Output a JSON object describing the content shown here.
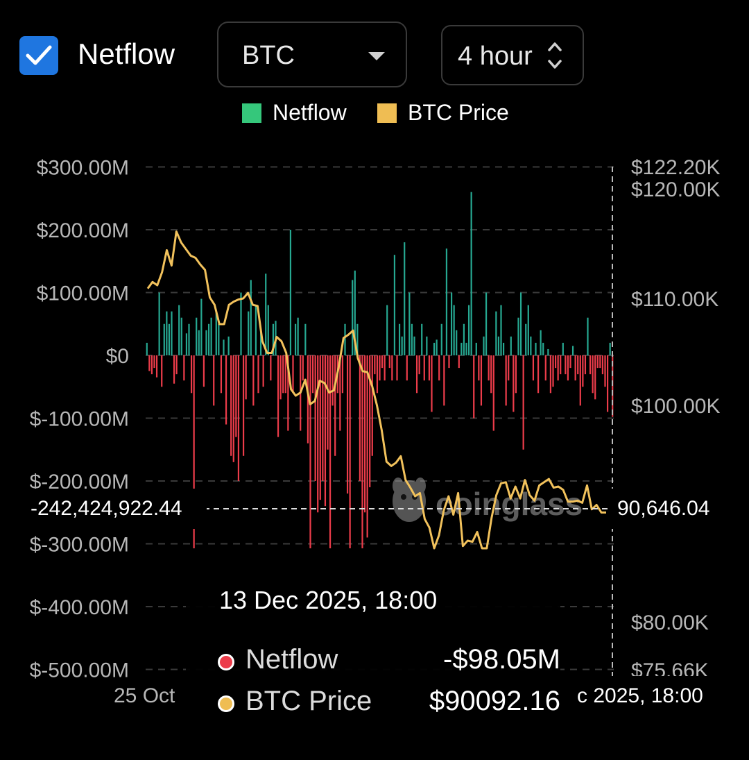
{
  "controls": {
    "checkbox_label": "Netflow",
    "coin": "BTC",
    "interval": "4 hour"
  },
  "colors": {
    "netflow_positive": "#26a891",
    "netflow_negative": "#ec3c4a",
    "price_line": "#f2c25c",
    "legend_netflow": "#35c77b",
    "legend_price": "#efbd53"
  },
  "chart_data": {
    "type": "bar",
    "title": "",
    "legend": [
      "Netflow",
      "BTC Price"
    ],
    "legend_position": "top-center",
    "grid": true,
    "y_left": {
      "ticks": [
        "$300.00M",
        "$200.00M",
        "$100.00M",
        "$0",
        "$-100.00M",
        "$-200.00M",
        "$-300.00M",
        "$-400.00M",
        "$-500.00M"
      ],
      "tick_values": [
        300,
        200,
        100,
        0,
        -100,
        -200,
        -300,
        -400,
        -500
      ],
      "unit": "M USD",
      "ylim": [
        -500,
        300
      ]
    },
    "y_right": {
      "ticks": [
        "$122.20K",
        "$120.00K",
        "$110.00K",
        "$100.00K",
        "$80.00K",
        "$75.66K"
      ],
      "tick_values": [
        122.2,
        120.0,
        110.0,
        100.0,
        80.0,
        75.66
      ],
      "unit": "K USD",
      "ylim": [
        75.66,
        122.2
      ]
    },
    "x_label_left": "25 Oct",
    "series": [
      {
        "name": "Netflow",
        "type": "bar",
        "values": [
          20,
          -25,
          -30,
          -20,
          -35,
          100,
          -50,
          50,
          70,
          50,
          70,
          -45,
          -30,
          80,
          60,
          -40,
          35,
          50,
          -60,
          -310,
          60,
          40,
          90,
          -50,
          40,
          50,
          60,
          -80,
          70,
          50,
          -60,
          25,
          -110,
          30,
          -160,
          -170,
          -130,
          -200,
          100,
          -160,
          -70,
          70,
          120,
          -80,
          80,
          -60,
          40,
          -50,
          130,
          80,
          -40,
          50,
          55,
          -130,
          -70,
          -60,
          -60,
          -120,
          200,
          -60,
          50,
          60,
          -120,
          -40,
          50,
          -140,
          -310,
          -60,
          -200,
          -250,
          -230,
          -200,
          -240,
          -150,
          -310,
          -80,
          -160,
          -60,
          -120,
          -60,
          50,
          -220,
          -310,
          120,
          135,
          50,
          -200,
          -310,
          -250,
          -290,
          -210,
          -160,
          -30,
          -60,
          -40,
          -20,
          -40,
          80,
          -20,
          -40,
          160,
          -40,
          50,
          30,
          180,
          -40,
          100,
          50,
          30,
          -60,
          -30,
          50,
          -40,
          30,
          -40,
          -90,
          20,
          25,
          -40,
          50,
          -80,
          170,
          -20,
          100,
          80,
          40,
          -20,
          20,
          50,
          20,
          80,
          260,
          -100,
          20,
          -40,
          -80,
          30,
          100,
          -40,
          -60,
          -120,
          70,
          30,
          80,
          20,
          -80,
          -40,
          30,
          -90,
          -60,
          60,
          100,
          -150,
          50,
          80,
          30,
          -40,
          20,
          -60,
          40,
          20,
          -40,
          10,
          -60,
          -50,
          -20,
          -40,
          -30,
          20,
          -30,
          -40,
          -20,
          15,
          -40,
          -30,
          -80,
          -50,
          -30,
          60,
          -30,
          -60,
          -70,
          -20,
          -20,
          -30,
          -50,
          -90,
          20,
          -98
        ]
      },
      {
        "name": "BTC Price",
        "type": "line",
        "values": [
          110.9,
          111.5,
          111.2,
          112.4,
          114.4,
          113.0,
          116.1,
          115.1,
          114.5,
          113.9,
          113.7,
          113.1,
          112.6,
          110.1,
          109.4,
          107.6,
          107.6,
          109.4,
          109.7,
          109.9,
          110.0,
          110.5,
          109.4,
          109.3,
          106.0,
          104.9,
          104.9,
          106.4,
          106.0,
          104.9,
          101.5,
          100.9,
          101.2,
          102.4,
          100.1,
          100.4,
          102.3,
          102.1,
          101.2,
          101.4,
          103.6,
          106.3,
          106.6,
          107.0,
          104.4,
          103.2,
          103.1,
          101.8,
          100.0,
          97.7,
          94.8,
          94.4,
          94.7,
          95.3,
          93.1,
          92.4,
          91.6,
          91.9,
          89.5,
          88.7,
          86.2,
          88.0,
          90.3,
          91.6,
          89.9,
          91.9,
          87.0,
          87.5,
          87.4,
          88.3,
          86.6,
          86.6,
          89.6,
          91.7,
          92.8,
          92.9,
          91.4,
          92.5,
          91.4,
          93.1,
          91.7,
          91.2,
          92.6,
          92.9,
          93.2,
          92.4,
          92.5,
          92.2,
          91.1,
          91.1,
          91.2,
          91.0,
          92.6,
          90.4,
          90.8,
          90.1,
          90.1
        ]
      }
    ],
    "crosshair": {
      "netflow_value": "-242,424,922.44",
      "price_value": "90,646.04",
      "time_label": "c 2025, 18:00"
    }
  },
  "tooltip": {
    "title": "13 Dec 2025, 18:00",
    "rows": [
      {
        "name": "Netflow",
        "value": "-$98.05M",
        "dot_color": "#ec3c4a"
      },
      {
        "name": "BTC Price",
        "value": "$90092.16",
        "dot_color": "#efbd53"
      }
    ]
  },
  "watermark": "coinglass"
}
